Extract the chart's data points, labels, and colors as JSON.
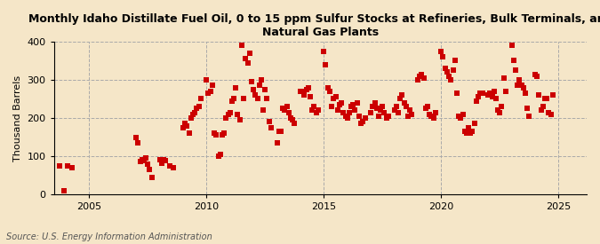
{
  "title": "Monthly Idaho Distillate Fuel Oil, 0 to 15 ppm Sulfur Stocks at Refineries, Bulk Terminals, and\nNatural Gas Plants",
  "ylabel": "Thousand Barrels",
  "source": "Source: U.S. Energy Information Administration",
  "background_color": "#F5E6C8",
  "plot_bg_color": "#F5E6C8",
  "marker_color": "#CC0000",
  "marker": "s",
  "markersize": 5,
  "xlim": [
    2003.5,
    2026.2
  ],
  "ylim": [
    0,
    400
  ],
  "yticks": [
    0,
    100,
    200,
    300,
    400
  ],
  "xticks": [
    2005,
    2010,
    2015,
    2020,
    2025
  ],
  "grid_color": "#AAAAAA",
  "vline_color": "#AAAAAA",
  "vlines": [
    2005,
    2010,
    2015,
    2020,
    2025
  ],
  "data": [
    [
      2003.75,
      75
    ],
    [
      2003.92,
      10
    ],
    [
      2004.08,
      75
    ],
    [
      2004.25,
      70
    ],
    [
      2007.0,
      148
    ],
    [
      2007.08,
      135
    ],
    [
      2007.17,
      85
    ],
    [
      2007.25,
      90
    ],
    [
      2007.33,
      88
    ],
    [
      2007.42,
      95
    ],
    [
      2007.5,
      80
    ],
    [
      2007.58,
      65
    ],
    [
      2007.67,
      43
    ],
    [
      2008.0,
      90
    ],
    [
      2008.08,
      82
    ],
    [
      2008.17,
      90
    ],
    [
      2008.25,
      88
    ],
    [
      2008.42,
      75
    ],
    [
      2008.58,
      70
    ],
    [
      2009.0,
      175
    ],
    [
      2009.08,
      185
    ],
    [
      2009.17,
      180
    ],
    [
      2009.25,
      160
    ],
    [
      2009.33,
      200
    ],
    [
      2009.42,
      210
    ],
    [
      2009.5,
      215
    ],
    [
      2009.58,
      225
    ],
    [
      2009.67,
      230
    ],
    [
      2009.75,
      250
    ],
    [
      2010.0,
      300
    ],
    [
      2010.08,
      265
    ],
    [
      2010.17,
      270
    ],
    [
      2010.25,
      285
    ],
    [
      2010.33,
      160
    ],
    [
      2010.42,
      155
    ],
    [
      2010.5,
      100
    ],
    [
      2010.58,
      105
    ],
    [
      2010.67,
      155
    ],
    [
      2010.75,
      160
    ],
    [
      2010.83,
      200
    ],
    [
      2010.92,
      210
    ],
    [
      2011.0,
      215
    ],
    [
      2011.08,
      245
    ],
    [
      2011.17,
      250
    ],
    [
      2011.25,
      280
    ],
    [
      2011.33,
      210
    ],
    [
      2011.42,
      195
    ],
    [
      2011.5,
      390
    ],
    [
      2011.58,
      250
    ],
    [
      2011.67,
      355
    ],
    [
      2011.75,
      345
    ],
    [
      2011.83,
      370
    ],
    [
      2011.92,
      295
    ],
    [
      2012.0,
      275
    ],
    [
      2012.08,
      260
    ],
    [
      2012.17,
      250
    ],
    [
      2012.25,
      285
    ],
    [
      2012.33,
      300
    ],
    [
      2012.42,
      220
    ],
    [
      2012.5,
      275
    ],
    [
      2012.58,
      250
    ],
    [
      2012.67,
      190
    ],
    [
      2012.75,
      175
    ],
    [
      2013.0,
      135
    ],
    [
      2013.08,
      165
    ],
    [
      2013.17,
      165
    ],
    [
      2013.25,
      225
    ],
    [
      2013.33,
      220
    ],
    [
      2013.42,
      230
    ],
    [
      2013.5,
      215
    ],
    [
      2013.58,
      200
    ],
    [
      2013.67,
      195
    ],
    [
      2013.75,
      185
    ],
    [
      2014.0,
      270
    ],
    [
      2014.08,
      270
    ],
    [
      2014.17,
      260
    ],
    [
      2014.25,
      275
    ],
    [
      2014.33,
      280
    ],
    [
      2014.42,
      255
    ],
    [
      2014.5,
      220
    ],
    [
      2014.58,
      230
    ],
    [
      2014.67,
      215
    ],
    [
      2014.75,
      220
    ],
    [
      2015.0,
      375
    ],
    [
      2015.08,
      340
    ],
    [
      2015.17,
      280
    ],
    [
      2015.25,
      270
    ],
    [
      2015.33,
      230
    ],
    [
      2015.42,
      250
    ],
    [
      2015.5,
      255
    ],
    [
      2015.58,
      220
    ],
    [
      2015.67,
      235
    ],
    [
      2015.75,
      240
    ],
    [
      2015.83,
      215
    ],
    [
      2015.92,
      205
    ],
    [
      2016.0,
      200
    ],
    [
      2016.08,
      215
    ],
    [
      2016.17,
      230
    ],
    [
      2016.25,
      235
    ],
    [
      2016.33,
      220
    ],
    [
      2016.42,
      240
    ],
    [
      2016.5,
      205
    ],
    [
      2016.58,
      185
    ],
    [
      2016.67,
      190
    ],
    [
      2016.75,
      200
    ],
    [
      2017.0,
      215
    ],
    [
      2017.08,
      230
    ],
    [
      2017.17,
      240
    ],
    [
      2017.25,
      225
    ],
    [
      2017.33,
      205
    ],
    [
      2017.42,
      220
    ],
    [
      2017.5,
      230
    ],
    [
      2017.58,
      215
    ],
    [
      2017.67,
      200
    ],
    [
      2017.75,
      205
    ],
    [
      2018.0,
      220
    ],
    [
      2018.08,
      230
    ],
    [
      2018.17,
      215
    ],
    [
      2018.25,
      250
    ],
    [
      2018.33,
      260
    ],
    [
      2018.42,
      240
    ],
    [
      2018.5,
      230
    ],
    [
      2018.58,
      205
    ],
    [
      2018.67,
      220
    ],
    [
      2018.75,
      210
    ],
    [
      2019.0,
      300
    ],
    [
      2019.08,
      310
    ],
    [
      2019.17,
      315
    ],
    [
      2019.25,
      305
    ],
    [
      2019.33,
      225
    ],
    [
      2019.42,
      230
    ],
    [
      2019.5,
      210
    ],
    [
      2019.58,
      205
    ],
    [
      2019.67,
      200
    ],
    [
      2019.75,
      215
    ],
    [
      2020.0,
      375
    ],
    [
      2020.08,
      360
    ],
    [
      2020.17,
      330
    ],
    [
      2020.25,
      320
    ],
    [
      2020.33,
      310
    ],
    [
      2020.42,
      300
    ],
    [
      2020.5,
      325
    ],
    [
      2020.58,
      350
    ],
    [
      2020.67,
      265
    ],
    [
      2020.75,
      205
    ],
    [
      2020.83,
      200
    ],
    [
      2020.92,
      210
    ],
    [
      2021.0,
      165
    ],
    [
      2021.08,
      160
    ],
    [
      2021.17,
      175
    ],
    [
      2021.25,
      160
    ],
    [
      2021.33,
      165
    ],
    [
      2021.42,
      185
    ],
    [
      2021.5,
      245
    ],
    [
      2021.58,
      255
    ],
    [
      2021.67,
      265
    ],
    [
      2021.75,
      265
    ],
    [
      2022.0,
      260
    ],
    [
      2022.08,
      265
    ],
    [
      2022.17,
      255
    ],
    [
      2022.25,
      270
    ],
    [
      2022.33,
      250
    ],
    [
      2022.42,
      220
    ],
    [
      2022.5,
      215
    ],
    [
      2022.58,
      230
    ],
    [
      2022.67,
      305
    ],
    [
      2022.75,
      270
    ],
    [
      2023.0,
      390
    ],
    [
      2023.08,
      350
    ],
    [
      2023.17,
      325
    ],
    [
      2023.25,
      285
    ],
    [
      2023.33,
      300
    ],
    [
      2023.42,
      285
    ],
    [
      2023.5,
      280
    ],
    [
      2023.58,
      265
    ],
    [
      2023.67,
      225
    ],
    [
      2023.75,
      205
    ],
    [
      2024.0,
      315
    ],
    [
      2024.08,
      310
    ],
    [
      2024.17,
      260
    ],
    [
      2024.25,
      220
    ],
    [
      2024.33,
      230
    ],
    [
      2024.42,
      250
    ],
    [
      2024.5,
      250
    ],
    [
      2024.58,
      215
    ],
    [
      2024.67,
      210
    ],
    [
      2024.75,
      260
    ]
  ]
}
